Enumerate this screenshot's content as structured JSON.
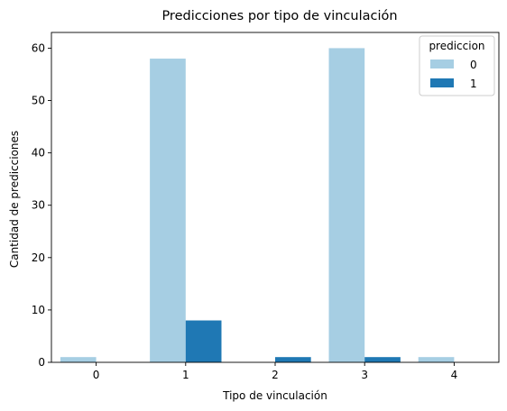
{
  "chart_data": {
    "type": "bar",
    "title": "Predicciones por tipo de vinculación",
    "xlabel": "Tipo de vinculación",
    "ylabel": "Cantidad de predicciones",
    "categories": [
      "0",
      "1",
      "2",
      "3",
      "4"
    ],
    "series": [
      {
        "name": "0",
        "color": "#a6cee3",
        "values": [
          1,
          58,
          0,
          60,
          1
        ]
      },
      {
        "name": "1",
        "color": "#1f78b4",
        "values": [
          0,
          8,
          1,
          1,
          0
        ]
      }
    ],
    "ylim": [
      0,
      63
    ],
    "yticks": [
      0,
      10,
      20,
      30,
      40,
      50,
      60
    ],
    "grid": false,
    "legend": {
      "title": "prediccion",
      "position": "top-right"
    }
  }
}
